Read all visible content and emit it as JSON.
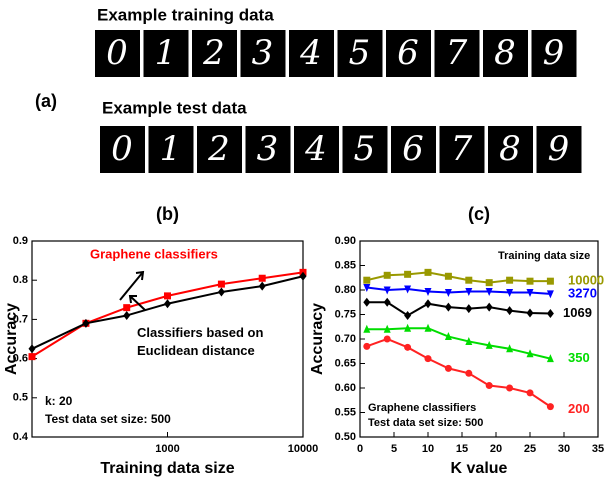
{
  "figure": {
    "panel_label": "(a)",
    "training_label": "Example training data",
    "test_label": "Example test data",
    "digits": [
      "0",
      "1",
      "2",
      "3",
      "4",
      "5",
      "6",
      "7",
      "8",
      "9"
    ]
  },
  "chart_data": [
    {
      "type": "line",
      "title": "(b)",
      "x_label": "Training data size",
      "y_label": "Accuracy",
      "x_log": true,
      "x": [
        100,
        250,
        500,
        1000,
        2500,
        5000,
        10000
      ],
      "series": [
        {
          "name": "Graphene classifiers",
          "color": "#ff0000",
          "marker": "square",
          "values": [
            0.605,
            0.69,
            0.73,
            0.76,
            0.79,
            0.805,
            0.82
          ]
        },
        {
          "name": "Classifiers based on Euclidean distance",
          "color": "#000000",
          "marker": "diamond",
          "values": [
            0.625,
            0.69,
            0.71,
            0.74,
            0.77,
            0.785,
            0.81
          ]
        }
      ],
      "annotations": [
        "k: 20",
        "Test data set size: 500"
      ],
      "xlim": [
        100,
        10000
      ],
      "xticks": [
        1000,
        10000
      ],
      "ylim": [
        0.4,
        0.9
      ],
      "yticks": [
        0.4,
        0.5,
        0.6,
        0.7,
        0.8,
        0.9
      ]
    },
    {
      "type": "line",
      "title": "(c)",
      "x_label": "K value",
      "y_label": "Accuracy",
      "legend_title": "Training data size",
      "x": [
        1,
        4,
        7,
        10,
        13,
        16,
        19,
        22,
        25,
        28
      ],
      "series": [
        {
          "name": "10000",
          "color": "#999900",
          "marker": "square",
          "values": [
            0.82,
            0.83,
            0.832,
            0.836,
            0.828,
            0.82,
            0.815,
            0.82,
            0.818,
            0.818
          ]
        },
        {
          "name": "3270",
          "color": "#0000ff",
          "marker": "triangle-down",
          "values": [
            0.805,
            0.8,
            0.802,
            0.797,
            0.795,
            0.797,
            0.797,
            0.795,
            0.795,
            0.792
          ]
        },
        {
          "name": "1069",
          "color": "#000000",
          "marker": "diamond",
          "values": [
            0.775,
            0.775,
            0.748,
            0.772,
            0.765,
            0.762,
            0.765,
            0.758,
            0.753,
            0.752
          ]
        },
        {
          "name": "350",
          "color": "#00dd00",
          "marker": "triangle-up",
          "values": [
            0.72,
            0.72,
            0.722,
            0.722,
            0.705,
            0.695,
            0.687,
            0.68,
            0.67,
            0.66
          ]
        },
        {
          "name": "200",
          "color": "#ff2222",
          "marker": "circle",
          "values": [
            0.685,
            0.7,
            0.683,
            0.66,
            0.64,
            0.63,
            0.605,
            0.6,
            0.59,
            0.562
          ]
        }
      ],
      "annotations": [
        "Graphene classifiers",
        "Test data set size: 500"
      ],
      "xlim": [
        0,
        35
      ],
      "xticks": [
        0,
        5,
        10,
        15,
        20,
        25,
        30,
        35
      ],
      "ylim": [
        0.5,
        0.9
      ],
      "yticks": [
        {
          "value": 0.5,
          "label": "0.50"
        },
        {
          "value": 0.55,
          "label": "0.55"
        },
        {
          "value": 0.6,
          "label": "0.60"
        },
        {
          "value": 0.65,
          "label": "0.65"
        },
        {
          "value": 0.7,
          "label": "0.70"
        },
        {
          "value": 0.75,
          "label": "0.75"
        },
        {
          "value": 0.8,
          "label": "0.80"
        },
        {
          "value": 0.85,
          "label": "0.85"
        },
        {
          "value": 0.9,
          "label": "0.90"
        }
      ]
    }
  ]
}
